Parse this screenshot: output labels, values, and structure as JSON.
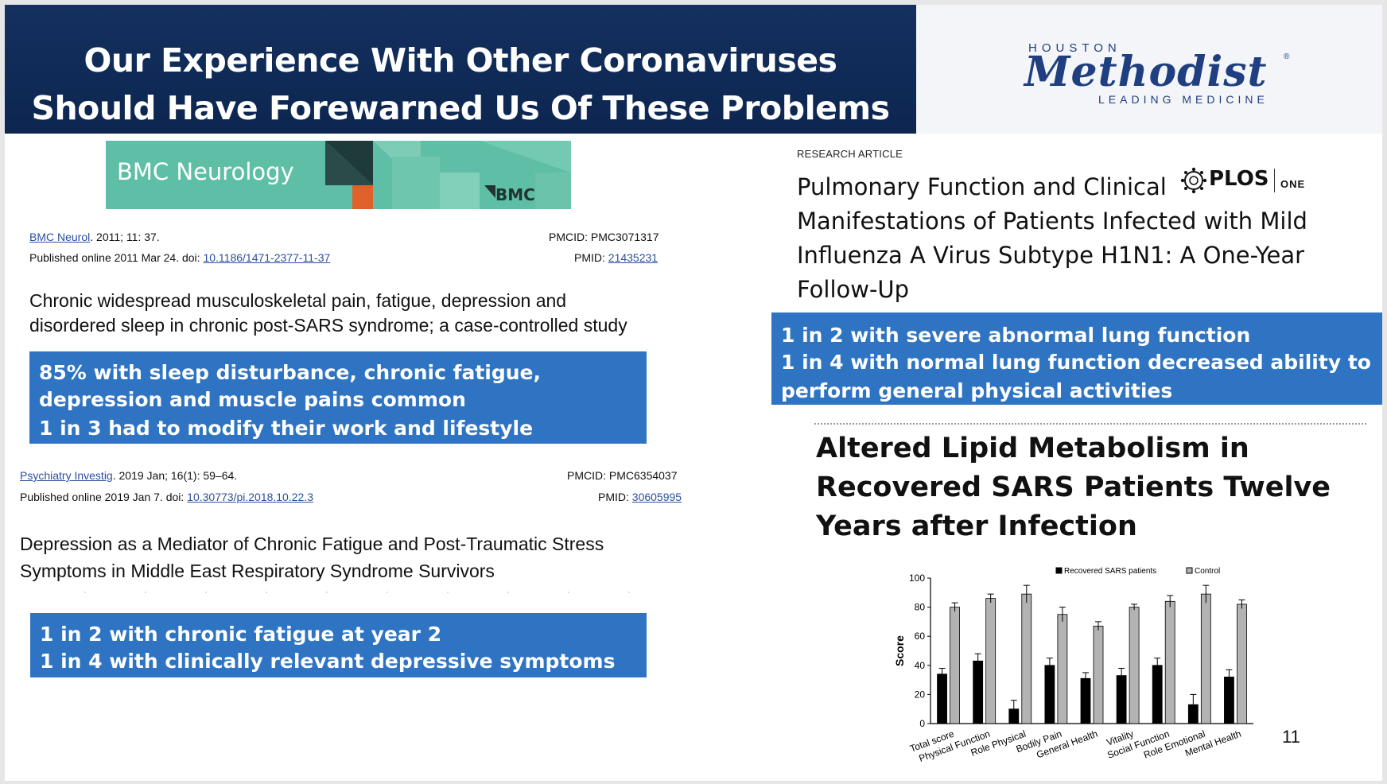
{
  "header": {
    "title_line1": "Our Experience With Other Coronaviruses",
    "title_line2": "Should Have Forewarned Us Of These Problems"
  },
  "logo": {
    "top": "HOUSTON",
    "main": "Methodist",
    "reg": "®",
    "bottom": "LEADING MEDICINE",
    "colors": {
      "blue": "#1f3f80"
    }
  },
  "bmc": {
    "banner_title": "BMC Neurology",
    "banner_logo": "BMC",
    "journal_link": "BMC Neurol",
    "journal_rest": ". 2011; 11: 37.",
    "published": "Published online 2011 Mar 24. doi: ",
    "doi": "10.1186/1471-2377-11-37",
    "pmcid": "PMCID: PMC3071317",
    "pmid_label": "PMID: ",
    "pmid": "21435231",
    "title_line1": "Chronic widespread musculoskeletal pain, fatigue, depression and",
    "title_line2": "disordered sleep in chronic post-SARS syndrome; a case-controlled study",
    "box_line1": "85% with sleep disturbance, chronic fatigue,",
    "box_line2": "depression and muscle pains common",
    "box_line3": "1 in 3 had to modify their work and lifestyle"
  },
  "psych": {
    "journal_link": "Psychiatry Investig",
    "journal_rest": ". 2019 Jan; 16(1): 59–64.",
    "published": "Published online 2019 Jan 7. doi: ",
    "doi": "10.30773/pi.2018.10.22.3",
    "pmcid": "PMCID: PMC6354037",
    "pmid_label": "PMID: ",
    "pmid": "30605995",
    "title_line1": "Depression as a Mediator of Chronic Fatigue and Post-Traumatic Stress",
    "title_line2": "Symptoms in Middle East Respiratory Syndrome Survivors",
    "box_line1": "1 in 2 with chronic fatigue at year 2",
    "box_line2": "1 in 4 with clinically relevant depressive symptoms"
  },
  "plos": {
    "label": "RESEARCH ARTICLE",
    "logo_main": "PLOS",
    "logo_sub": "ONE",
    "title_line1": "Pulmonary Function and Clinical",
    "title_line2": "Manifestations of Patients Infected with Mild",
    "title_line3": "Influenza A Virus Subtype H1N1: A One-Year",
    "title_line4": "Follow-Up",
    "box_line1": "1 in 2 with severe abnormal lung function",
    "box_line2": "1 in 4 with normal lung function decreased ability to",
    "box_line3": "perform general physical activities"
  },
  "lipid": {
    "title_line1": "Altered Lipid Metabolism in",
    "title_line2": "Recovered SARS Patients Twelve",
    "title_line3": "Years after Infection"
  },
  "chart_data": {
    "type": "bar",
    "categories": [
      "Total score",
      "Physical Function",
      "Role Physical",
      "Bodily Pain",
      "General Health",
      "Vitality",
      "Social Function",
      "Role Emotional",
      "Mental Health"
    ],
    "series": [
      {
        "name": "Recovered SARS patients",
        "values": [
          34,
          43,
          10,
          40,
          31,
          33,
          40,
          13,
          32
        ],
        "errors": [
          4,
          5,
          6,
          5,
          4,
          5,
          5,
          7,
          5
        ],
        "color": "#000000"
      },
      {
        "name": "Control",
        "values": [
          80,
          86,
          89,
          75,
          67,
          80,
          84,
          89,
          82
        ],
        "errors": [
          3,
          3,
          6,
          5,
          3,
          2,
          4,
          6,
          3
        ],
        "color": "#b3b3b3"
      }
    ],
    "ylabel": "Score",
    "xlabel": "",
    "ylim": [
      0,
      100
    ],
    "yticks": [
      "0",
      "20",
      "40",
      "60",
      "80",
      "100"
    ],
    "legend_position": "top-right",
    "grid": false
  },
  "page_number": "11"
}
